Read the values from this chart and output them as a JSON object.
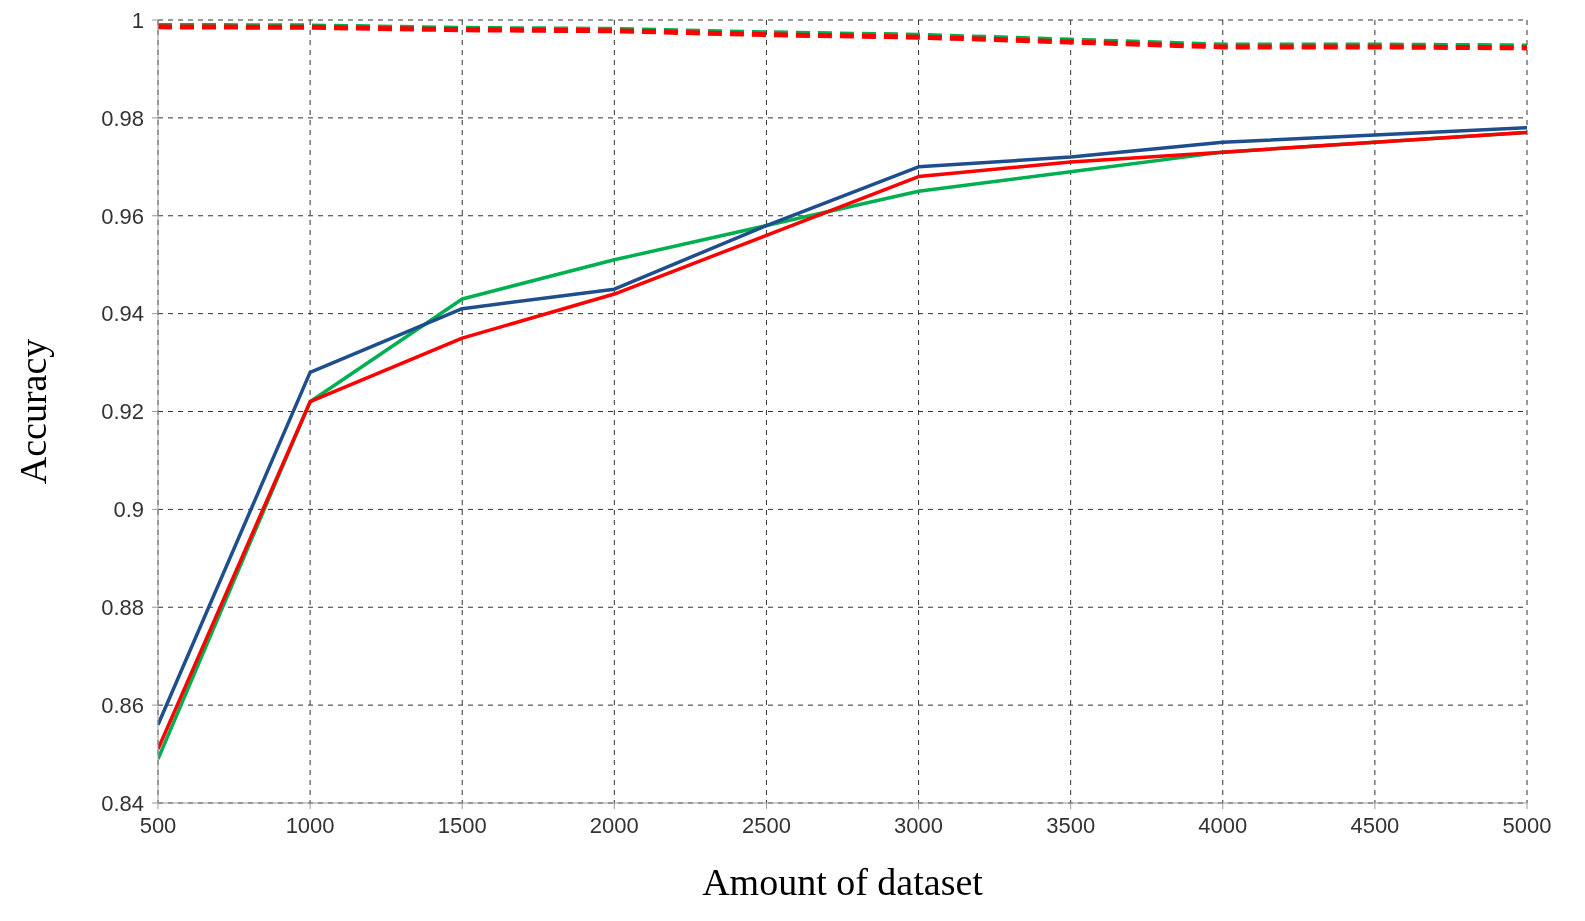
{
  "chart_data": {
    "type": "line",
    "xlabel": "Amount of dataset",
    "ylabel": "Accuracy",
    "x": [
      500,
      1000,
      1500,
      2000,
      2500,
      3000,
      3500,
      4000,
      4500,
      5000
    ],
    "series": [
      {
        "color": "#00b050",
        "line_style": "dashed",
        "values": [
          0.9989,
          0.9988,
          0.9983,
          0.9981,
          0.9974,
          0.9969,
          0.9959,
          0.9949,
          0.9949,
          0.9947
        ]
      },
      {
        "color": "#ff0000",
        "line_style": "dashed",
        "values": [
          0.9986,
          0.9985,
          0.998,
          0.9978,
          0.997,
          0.9965,
          0.9955,
          0.9945,
          0.9945,
          0.9943
        ]
      },
      {
        "color": "#00b050",
        "line_style": "solid",
        "values": [
          0.849,
          0.922,
          0.943,
          0.951,
          0.958,
          0.965,
          0.969,
          0.973,
          0.975,
          0.977
        ]
      },
      {
        "color": "#1f4e8c",
        "line_style": "solid",
        "values": [
          0.856,
          0.928,
          0.941,
          0.945,
          0.958,
          0.97,
          0.972,
          0.975,
          0.9765,
          0.978
        ]
      },
      {
        "color": "#ff0000",
        "line_style": "solid",
        "values": [
          0.851,
          0.922,
          0.935,
          0.944,
          0.956,
          0.968,
          0.971,
          0.973,
          0.975,
          0.977
        ]
      }
    ],
    "xlim": [
      500,
      5000
    ],
    "xticks": [
      500,
      1000,
      1500,
      2000,
      2500,
      3000,
      3500,
      4000,
      4500,
      5000
    ],
    "ylim": [
      0.84,
      1
    ],
    "yticks": [
      0.84,
      0.86,
      0.88,
      0.9,
      0.92,
      0.94,
      0.96,
      0.98,
      1
    ],
    "grid": true,
    "legend": false,
    "marker": "none"
  }
}
